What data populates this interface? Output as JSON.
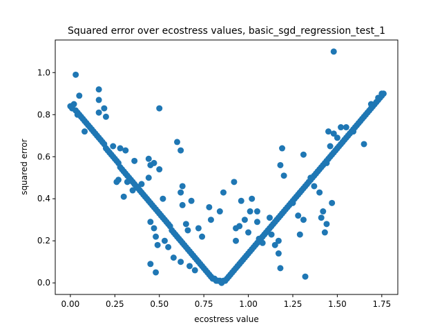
{
  "chart_data": {
    "type": "scatter",
    "title": "Squared error over ecostress values, basic_sgd_regression_test_1",
    "xlabel": "ecostress value",
    "ylabel": "squared error",
    "xlim": [
      -0.085,
      1.84
    ],
    "ylim": [
      -0.055,
      1.155
    ],
    "xticks": [
      0.0,
      0.25,
      0.5,
      0.75,
      1.0,
      1.25,
      1.5,
      1.75
    ],
    "xtick_labels": [
      "0.00",
      "0.25",
      "0.50",
      "0.75",
      "1.00",
      "1.25",
      "1.50",
      "1.75"
    ],
    "yticks": [
      0.0,
      0.2,
      0.4,
      0.6,
      0.8,
      1.0
    ],
    "ytick_labels": [
      "0.0",
      "0.2",
      "0.4",
      "0.6",
      "0.8",
      "1.0"
    ],
    "grid": false,
    "marker_color": "#1f77b4",
    "trend_note": "V-shaped band with minimum near x=0.85; points scattered along the band",
    "points": [
      [
        0.0,
        0.84
      ],
      [
        0.01,
        0.83
      ],
      [
        0.02,
        0.85
      ],
      [
        0.03,
        0.82
      ],
      [
        0.04,
        0.81
      ],
      [
        0.05,
        0.8
      ],
      [
        0.06,
        0.79
      ],
      [
        0.07,
        0.78
      ],
      [
        0.08,
        0.77
      ],
      [
        0.09,
        0.76
      ],
      [
        0.1,
        0.75
      ],
      [
        0.11,
        0.74
      ],
      [
        0.12,
        0.73
      ],
      [
        0.13,
        0.72
      ],
      [
        0.14,
        0.71
      ],
      [
        0.15,
        0.7
      ],
      [
        0.16,
        0.69
      ],
      [
        0.17,
        0.68
      ],
      [
        0.18,
        0.67
      ],
      [
        0.19,
        0.66
      ],
      [
        0.2,
        0.64
      ],
      [
        0.21,
        0.63
      ],
      [
        0.22,
        0.62
      ],
      [
        0.23,
        0.61
      ],
      [
        0.24,
        0.6
      ],
      [
        0.25,
        0.59
      ],
      [
        0.26,
        0.58
      ],
      [
        0.27,
        0.57
      ],
      [
        0.28,
        0.55
      ],
      [
        0.29,
        0.54
      ],
      [
        0.3,
        0.53
      ],
      [
        0.31,
        0.52
      ],
      [
        0.32,
        0.51
      ],
      [
        0.33,
        0.5
      ],
      [
        0.34,
        0.49
      ],
      [
        0.35,
        0.48
      ],
      [
        0.36,
        0.47
      ],
      [
        0.37,
        0.46
      ],
      [
        0.38,
        0.45
      ],
      [
        0.39,
        0.44
      ],
      [
        0.4,
        0.43
      ],
      [
        0.41,
        0.42
      ],
      [
        0.42,
        0.41
      ],
      [
        0.43,
        0.4
      ],
      [
        0.44,
        0.39
      ],
      [
        0.45,
        0.38
      ],
      [
        0.46,
        0.37
      ],
      [
        0.47,
        0.36
      ],
      [
        0.48,
        0.35
      ],
      [
        0.49,
        0.34
      ],
      [
        0.5,
        0.33
      ],
      [
        0.51,
        0.32
      ],
      [
        0.52,
        0.31
      ],
      [
        0.53,
        0.3
      ],
      [
        0.54,
        0.29
      ],
      [
        0.55,
        0.28
      ],
      [
        0.56,
        0.27
      ],
      [
        0.57,
        0.25
      ],
      [
        0.58,
        0.24
      ],
      [
        0.59,
        0.23
      ],
      [
        0.6,
        0.22
      ],
      [
        0.61,
        0.21
      ],
      [
        0.62,
        0.2
      ],
      [
        0.63,
        0.19
      ],
      [
        0.64,
        0.18
      ],
      [
        0.65,
        0.17
      ],
      [
        0.66,
        0.16
      ],
      [
        0.67,
        0.15
      ],
      [
        0.68,
        0.14
      ],
      [
        0.69,
        0.13
      ],
      [
        0.7,
        0.12
      ],
      [
        0.71,
        0.11
      ],
      [
        0.72,
        0.1
      ],
      [
        0.73,
        0.09
      ],
      [
        0.74,
        0.08
      ],
      [
        0.75,
        0.07
      ],
      [
        0.76,
        0.06
      ],
      [
        0.77,
        0.05
      ],
      [
        0.78,
        0.04
      ],
      [
        0.79,
        0.03
      ],
      [
        0.8,
        0.02
      ],
      [
        0.81,
        0.02
      ],
      [
        0.82,
        0.01
      ],
      [
        0.83,
        0.01
      ],
      [
        0.84,
        0.01
      ],
      [
        0.85,
        0.0
      ],
      [
        0.86,
        0.01
      ],
      [
        0.87,
        0.01
      ],
      [
        0.88,
        0.02
      ],
      [
        0.89,
        0.03
      ],
      [
        0.9,
        0.04
      ],
      [
        0.91,
        0.05
      ],
      [
        0.92,
        0.06
      ],
      [
        0.93,
        0.07
      ],
      [
        0.94,
        0.08
      ],
      [
        0.95,
        0.09
      ],
      [
        0.96,
        0.1
      ],
      [
        0.97,
        0.11
      ],
      [
        0.98,
        0.12
      ],
      [
        0.99,
        0.13
      ],
      [
        1.0,
        0.14
      ],
      [
        1.01,
        0.15
      ],
      [
        1.02,
        0.16
      ],
      [
        1.03,
        0.17
      ],
      [
        1.04,
        0.18
      ],
      [
        1.05,
        0.19
      ],
      [
        1.06,
        0.2
      ],
      [
        1.07,
        0.21
      ],
      [
        1.08,
        0.22
      ],
      [
        1.09,
        0.23
      ],
      [
        1.1,
        0.24
      ],
      [
        1.11,
        0.25
      ],
      [
        1.12,
        0.26
      ],
      [
        1.13,
        0.27
      ],
      [
        1.14,
        0.28
      ],
      [
        1.15,
        0.29
      ],
      [
        1.16,
        0.3
      ],
      [
        1.17,
        0.31
      ],
      [
        1.18,
        0.32
      ],
      [
        1.19,
        0.33
      ],
      [
        1.2,
        0.34
      ],
      [
        1.21,
        0.35
      ],
      [
        1.22,
        0.36
      ],
      [
        1.23,
        0.37
      ],
      [
        1.24,
        0.38
      ],
      [
        1.25,
        0.39
      ],
      [
        1.26,
        0.4
      ],
      [
        1.27,
        0.41
      ],
      [
        1.28,
        0.42
      ],
      [
        1.29,
        0.43
      ],
      [
        1.3,
        0.44
      ],
      [
        1.31,
        0.45
      ],
      [
        1.32,
        0.46
      ],
      [
        1.33,
        0.47
      ],
      [
        1.34,
        0.48
      ],
      [
        1.35,
        0.49
      ],
      [
        1.36,
        0.5
      ],
      [
        1.37,
        0.51
      ],
      [
        1.38,
        0.52
      ],
      [
        1.39,
        0.53
      ],
      [
        1.4,
        0.54
      ],
      [
        1.41,
        0.55
      ],
      [
        1.42,
        0.56
      ],
      [
        1.43,
        0.57
      ],
      [
        1.44,
        0.58
      ],
      [
        1.45,
        0.59
      ],
      [
        1.46,
        0.6
      ],
      [
        1.47,
        0.61
      ],
      [
        1.48,
        0.62
      ],
      [
        1.49,
        0.63
      ],
      [
        1.5,
        0.64
      ],
      [
        1.51,
        0.65
      ],
      [
        1.52,
        0.66
      ],
      [
        1.53,
        0.67
      ],
      [
        1.54,
        0.68
      ],
      [
        1.55,
        0.69
      ],
      [
        1.56,
        0.7
      ],
      [
        1.57,
        0.71
      ],
      [
        1.58,
        0.72
      ],
      [
        1.59,
        0.73
      ],
      [
        1.6,
        0.74
      ],
      [
        1.61,
        0.75
      ],
      [
        1.62,
        0.76
      ],
      [
        1.63,
        0.77
      ],
      [
        1.64,
        0.78
      ],
      [
        1.65,
        0.79
      ],
      [
        1.66,
        0.8
      ],
      [
        1.67,
        0.81
      ],
      [
        1.68,
        0.82
      ],
      [
        1.69,
        0.83
      ],
      [
        1.7,
        0.84
      ],
      [
        1.71,
        0.85
      ],
      [
        1.72,
        0.86
      ],
      [
        1.73,
        0.87
      ],
      [
        1.74,
        0.88
      ],
      [
        1.75,
        0.89
      ],
      [
        1.76,
        0.9
      ],
      [
        0.03,
        0.99
      ],
      [
        0.05,
        0.89
      ],
      [
        0.04,
        0.8
      ],
      [
        0.08,
        0.72
      ],
      [
        0.16,
        0.92
      ],
      [
        0.16,
        0.87
      ],
      [
        0.19,
        0.83
      ],
      [
        0.16,
        0.81
      ],
      [
        0.2,
        0.79
      ],
      [
        0.24,
        0.65
      ],
      [
        0.28,
        0.64
      ],
      [
        0.31,
        0.63
      ],
      [
        0.27,
        0.49
      ],
      [
        0.26,
        0.48
      ],
      [
        0.32,
        0.48
      ],
      [
        0.3,
        0.41
      ],
      [
        0.36,
        0.58
      ],
      [
        0.35,
        0.44
      ],
      [
        0.44,
        0.59
      ],
      [
        0.45,
        0.56
      ],
      [
        0.47,
        0.57
      ],
      [
        0.5,
        0.54
      ],
      [
        0.44,
        0.5
      ],
      [
        0.4,
        0.47
      ],
      [
        0.45,
        0.29
      ],
      [
        0.48,
        0.22
      ],
      [
        0.45,
        0.09
      ],
      [
        0.48,
        0.05
      ],
      [
        0.5,
        0.83
      ],
      [
        0.52,
        0.4
      ],
      [
        0.47,
        0.26
      ],
      [
        0.49,
        0.18
      ],
      [
        0.53,
        0.2
      ],
      [
        0.55,
        0.17
      ],
      [
        0.6,
        0.67
      ],
      [
        0.62,
        0.63
      ],
      [
        0.63,
        0.46
      ],
      [
        0.62,
        0.43
      ],
      [
        0.63,
        0.37
      ],
      [
        0.68,
        0.39
      ],
      [
        0.65,
        0.28
      ],
      [
        0.66,
        0.25
      ],
      [
        0.72,
        0.26
      ],
      [
        0.74,
        0.22
      ],
      [
        0.58,
        0.12
      ],
      [
        0.62,
        0.1
      ],
      [
        0.67,
        0.08
      ],
      [
        0.7,
        0.06
      ],
      [
        0.78,
        0.36
      ],
      [
        0.79,
        0.3
      ],
      [
        0.84,
        0.34
      ],
      [
        0.86,
        0.43
      ],
      [
        0.92,
        0.48
      ],
      [
        0.93,
        0.26
      ],
      [
        0.95,
        0.27
      ],
      [
        0.93,
        0.2
      ],
      [
        0.96,
        0.39
      ],
      [
        0.98,
        0.3
      ],
      [
        1.01,
        0.34
      ],
      [
        1.0,
        0.24
      ],
      [
        1.05,
        0.29
      ],
      [
        1.06,
        0.21
      ],
      [
        1.08,
        0.19
      ],
      [
        1.02,
        0.4
      ],
      [
        1.05,
        0.34
      ],
      [
        1.12,
        0.31
      ],
      [
        1.13,
        0.23
      ],
      [
        1.15,
        0.18
      ],
      [
        1.17,
        0.2
      ],
      [
        1.18,
        0.07
      ],
      [
        1.17,
        0.14
      ],
      [
        1.19,
        0.64
      ],
      [
        1.18,
        0.56
      ],
      [
        1.2,
        0.51
      ],
      [
        1.25,
        0.38
      ],
      [
        1.28,
        0.32
      ],
      [
        1.29,
        0.23
      ],
      [
        1.31,
        0.3
      ],
      [
        1.32,
        0.03
      ],
      [
        1.31,
        0.61
      ],
      [
        1.35,
        0.5
      ],
      [
        1.37,
        0.46
      ],
      [
        1.4,
        0.43
      ],
      [
        1.41,
        0.31
      ],
      [
        1.42,
        0.34
      ],
      [
        1.43,
        0.24
      ],
      [
        1.44,
        0.28
      ],
      [
        1.45,
        0.72
      ],
      [
        1.48,
        0.71
      ],
      [
        1.47,
        0.38
      ],
      [
        1.44,
        0.57
      ],
      [
        1.46,
        0.65
      ],
      [
        1.5,
        0.69
      ],
      [
        1.52,
        0.74
      ],
      [
        1.55,
        0.74
      ],
      [
        1.59,
        0.72
      ],
      [
        1.65,
        0.66
      ],
      [
        1.48,
        1.1
      ],
      [
        1.75,
        0.9
      ],
      [
        1.73,
        0.88
      ],
      [
        1.69,
        0.85
      ]
    ]
  }
}
